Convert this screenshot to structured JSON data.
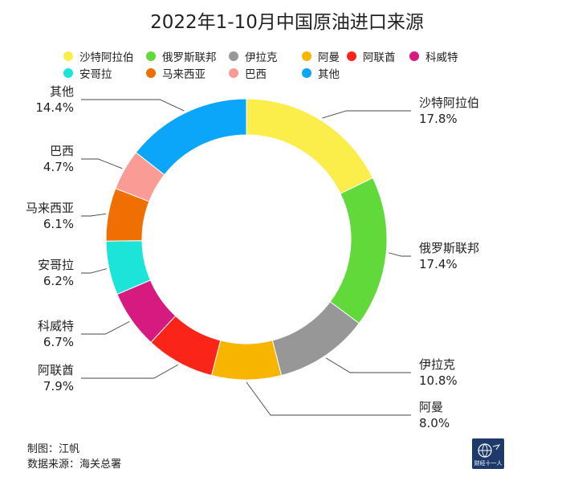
{
  "chart_data": {
    "type": "pie",
    "title": "2022年1-10月中国原油进口来源",
    "categories": [
      "沙特阿拉伯",
      "俄罗斯联邦",
      "伊拉克",
      "阿曼",
      "阿联酋",
      "科威特",
      "安哥拉",
      "马来西亚",
      "巴西",
      "其他"
    ],
    "values": [
      17.8,
      17.4,
      10.8,
      8.0,
      7.9,
      6.7,
      6.2,
      6.1,
      4.7,
      14.4
    ],
    "value_labels": [
      "17.8%",
      "17.4%",
      "10.8%",
      "8.0%",
      "7.9%",
      "6.7%",
      "6.2%",
      "6.1%",
      "4.7%",
      "14.4%"
    ],
    "colors": [
      "#fbee4a",
      "#62d93a",
      "#979797",
      "#f7b500",
      "#fa2419",
      "#d61a7f",
      "#1de4d8",
      "#f06f03",
      "#fa9c95",
      "#0ba6f9"
    ],
    "legend_placement": "top",
    "donut": true
  },
  "footer": {
    "author": "制图：江帆",
    "source": "数据来源：海关总署"
  },
  "logo": {
    "text": "财经十一人"
  }
}
